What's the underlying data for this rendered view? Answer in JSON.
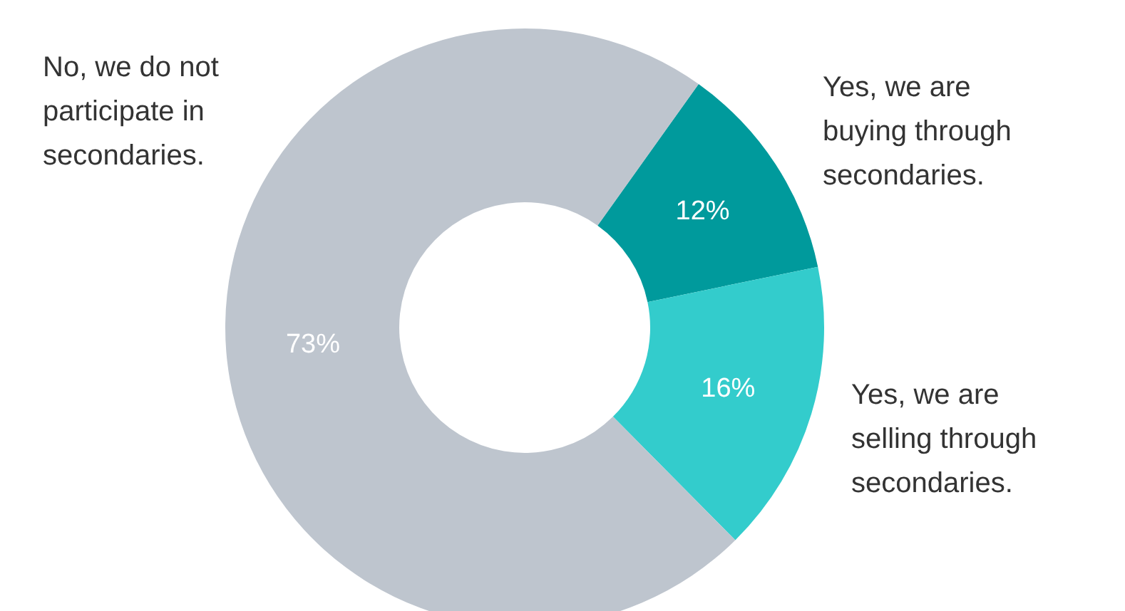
{
  "chart_data": {
    "type": "donut",
    "categories": [
      "Yes, we are buying through secondaries.",
      "Yes, we are selling through secondaries.",
      "No, we do not participate in secondaries."
    ],
    "values": [
      12,
      16,
      73
    ],
    "value_labels": [
      "12%",
      "16%",
      "73%"
    ],
    "colors": [
      "#009a9c",
      "#33cccc",
      "#bec5ce"
    ],
    "legend": false
  }
}
